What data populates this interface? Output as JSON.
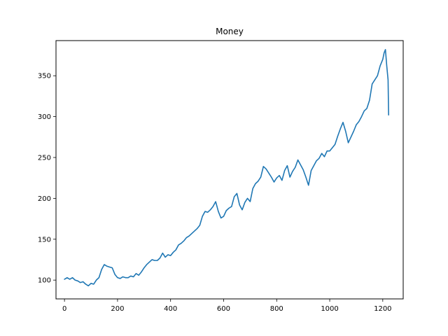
{
  "chart_data": {
    "type": "line",
    "title": "Money",
    "xlabel": "",
    "ylabel": "",
    "xlim": [
      -32,
      1277
    ],
    "ylim": [
      77,
      393
    ],
    "grid": false,
    "legend": "none",
    "x_ticks": [
      {
        "value": 0,
        "label": "0"
      },
      {
        "value": 200,
        "label": "200"
      },
      {
        "value": 400,
        "label": "400"
      },
      {
        "value": 600,
        "label": "600"
      },
      {
        "value": 800,
        "label": "800"
      },
      {
        "value": 1000,
        "label": "1000"
      },
      {
        "value": 1200,
        "label": "1200"
      }
    ],
    "y_ticks": [
      {
        "value": 100,
        "label": "100"
      },
      {
        "value": 150,
        "label": "150"
      },
      {
        "value": 200,
        "label": "200"
      },
      {
        "value": 250,
        "label": "250"
      },
      {
        "value": 300,
        "label": "300"
      },
      {
        "value": 350,
        "label": "350"
      }
    ],
    "series": [
      {
        "color": "#1f77b4",
        "points": [
          [
            0,
            101
          ],
          [
            10,
            103
          ],
          [
            20,
            101
          ],
          [
            30,
            103
          ],
          [
            40,
            100
          ],
          [
            50,
            99
          ],
          [
            60,
            97
          ],
          [
            70,
            98
          ],
          [
            80,
            95
          ],
          [
            90,
            93
          ],
          [
            100,
            96
          ],
          [
            110,
            95
          ],
          [
            120,
            100
          ],
          [
            130,
            103
          ],
          [
            140,
            113
          ],
          [
            150,
            119
          ],
          [
            160,
            117
          ],
          [
            170,
            116
          ],
          [
            180,
            115
          ],
          [
            190,
            107
          ],
          [
            200,
            103
          ],
          [
            210,
            102
          ],
          [
            220,
            104
          ],
          [
            230,
            103
          ],
          [
            240,
            103
          ],
          [
            250,
            105
          ],
          [
            260,
            104
          ],
          [
            270,
            108
          ],
          [
            280,
            106
          ],
          [
            290,
            110
          ],
          [
            300,
            115
          ],
          [
            310,
            119
          ],
          [
            320,
            122
          ],
          [
            330,
            125
          ],
          [
            340,
            124
          ],
          [
            350,
            124
          ],
          [
            360,
            127
          ],
          [
            370,
            133
          ],
          [
            380,
            128
          ],
          [
            390,
            131
          ],
          [
            400,
            130
          ],
          [
            410,
            134
          ],
          [
            420,
            137
          ],
          [
            430,
            143
          ],
          [
            440,
            145
          ],
          [
            450,
            148
          ],
          [
            460,
            152
          ],
          [
            470,
            154
          ],
          [
            480,
            157
          ],
          [
            490,
            160
          ],
          [
            500,
            163
          ],
          [
            510,
            167
          ],
          [
            520,
            178
          ],
          [
            530,
            184
          ],
          [
            540,
            183
          ],
          [
            550,
            186
          ],
          [
            560,
            190
          ],
          [
            570,
            196
          ],
          [
            580,
            184
          ],
          [
            590,
            176
          ],
          [
            600,
            178
          ],
          [
            610,
            185
          ],
          [
            620,
            188
          ],
          [
            630,
            190
          ],
          [
            640,
            202
          ],
          [
            650,
            206
          ],
          [
            660,
            192
          ],
          [
            670,
            186
          ],
          [
            680,
            195
          ],
          [
            690,
            200
          ],
          [
            700,
            196
          ],
          [
            710,
            212
          ],
          [
            720,
            218
          ],
          [
            730,
            221
          ],
          [
            740,
            226
          ],
          [
            750,
            239
          ],
          [
            760,
            236
          ],
          [
            770,
            231
          ],
          [
            780,
            226
          ],
          [
            790,
            220
          ],
          [
            800,
            225
          ],
          [
            810,
            228
          ],
          [
            820,
            222
          ],
          [
            830,
            234
          ],
          [
            840,
            240
          ],
          [
            850,
            226
          ],
          [
            860,
            233
          ],
          [
            870,
            238
          ],
          [
            880,
            247
          ],
          [
            890,
            241
          ],
          [
            900,
            235
          ],
          [
            910,
            226
          ],
          [
            920,
            216
          ],
          [
            930,
            234
          ],
          [
            940,
            240
          ],
          [
            950,
            246
          ],
          [
            960,
            249
          ],
          [
            970,
            255
          ],
          [
            980,
            251
          ],
          [
            990,
            258
          ],
          [
            1000,
            258
          ],
          [
            1010,
            262
          ],
          [
            1020,
            266
          ],
          [
            1030,
            276
          ],
          [
            1040,
            285
          ],
          [
            1050,
            293
          ],
          [
            1060,
            282
          ],
          [
            1070,
            268
          ],
          [
            1080,
            275
          ],
          [
            1090,
            282
          ],
          [
            1100,
            290
          ],
          [
            1110,
            294
          ],
          [
            1120,
            300
          ],
          [
            1130,
            307
          ],
          [
            1140,
            310
          ],
          [
            1150,
            320
          ],
          [
            1160,
            340
          ],
          [
            1170,
            345
          ],
          [
            1180,
            350
          ],
          [
            1190,
            362
          ],
          [
            1200,
            370
          ],
          [
            1205,
            378
          ],
          [
            1210,
            382
          ],
          [
            1215,
            362
          ],
          [
            1220,
            345
          ],
          [
            1222,
            302
          ]
        ]
      }
    ]
  }
}
